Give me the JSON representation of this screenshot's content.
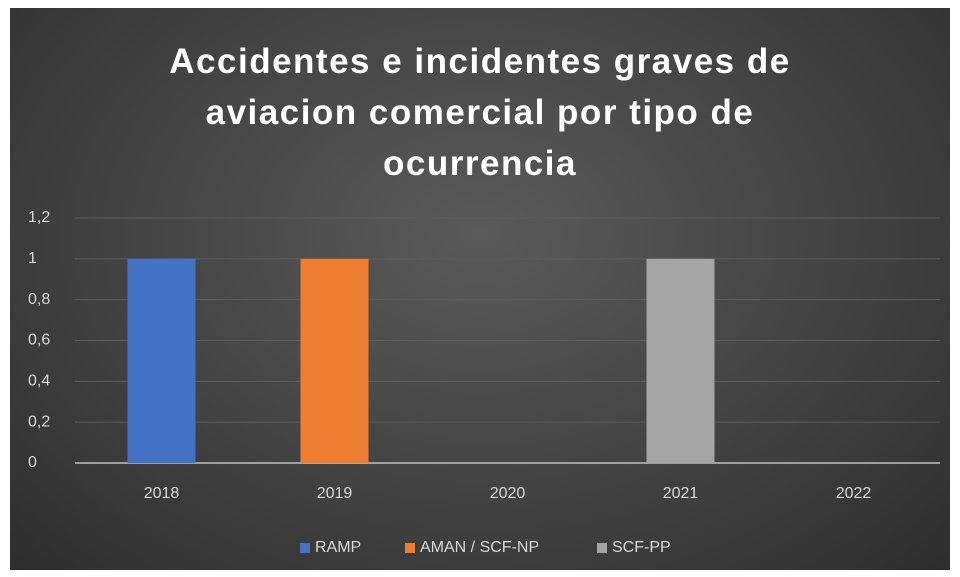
{
  "chart_data": {
    "type": "bar",
    "title": "Accidentes e incidentes graves de aviacion comercial por tipo de ocurrencia",
    "categories": [
      "2018",
      "2019",
      "2020",
      "2021",
      "2022"
    ],
    "series": [
      {
        "name": "RAMP",
        "color": "#4472c4",
        "values": [
          1,
          0,
          0,
          0,
          0
        ]
      },
      {
        "name": "AMAN / SCF-NP",
        "color": "#ed7d31",
        "values": [
          0,
          1,
          0,
          0,
          0
        ]
      },
      {
        "name": "SCF-PP",
        "color": "#a5a5a5",
        "values": [
          0,
          0,
          0,
          1,
          0
        ]
      }
    ],
    "ylim": [
      0,
      1.2
    ],
    "yticks": [
      0,
      {
        "value": 0.2,
        "label": "0,2"
      },
      {
        "value": 0.4,
        "label": "0,4"
      },
      {
        "value": 0.6,
        "label": "0,6"
      },
      {
        "value": 0.8,
        "label": "0,8"
      },
      1,
      {
        "value": 1.2,
        "label": "1,2"
      }
    ],
    "grid": true,
    "legend": "bottom"
  }
}
